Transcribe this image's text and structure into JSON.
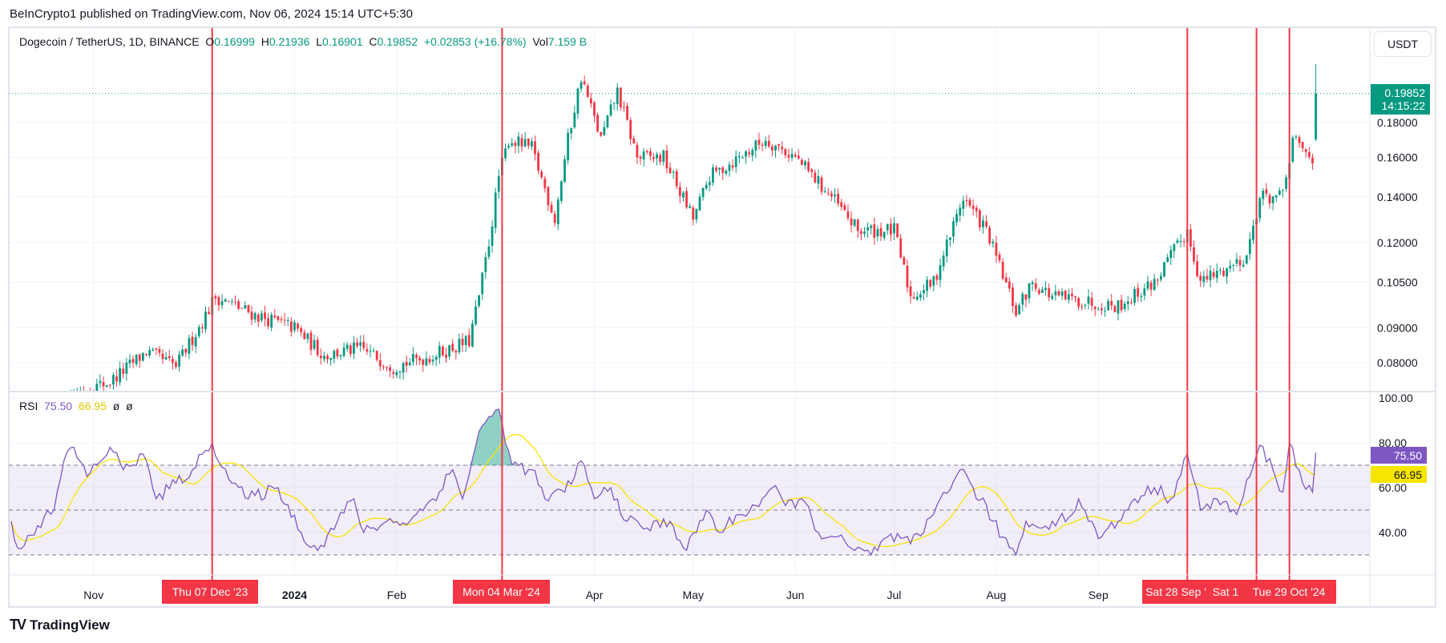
{
  "header": {
    "published": "BeInCrypto1 published on TradingView.com, Nov 06, 2024 15:14 UTC+5:30"
  },
  "legend": {
    "symbol": "Dogecoin / TetherUS, 1D, BINANCE",
    "o_label": "O",
    "o": "0.16999",
    "h_label": "H",
    "h": "0.21936",
    "l_label": "L",
    "l": "0.16901",
    "c_label": "C",
    "c": "0.19852",
    "change": "+0.02853 (+16.78%)",
    "vol_label": "Vol",
    "vol": "7.159 B"
  },
  "rsi_legend": {
    "name": "RSI",
    "rsi": "75.50",
    "ma": "66.95",
    "x1": "ø",
    "x2": "ø"
  },
  "currency_button": "USDT",
  "last_price": {
    "price": "0.19852",
    "countdown": "14:15:22"
  },
  "rsi_tags": {
    "rsi": "75.50",
    "ma": "66.95"
  },
  "footer": {
    "brand": "TradingView",
    "logo": "TV"
  },
  "colors": {
    "up": "#089981",
    "down": "#f23645",
    "rsi": "#7e57c2",
    "rsi_ma": "#f5e500",
    "marker": "#f23645"
  },
  "time_axis": {
    "months": [
      {
        "label": "Nov",
        "day": 25
      },
      {
        "label": "2024",
        "day": 86
      },
      {
        "label": "Feb",
        "day": 117
      },
      {
        "label": "Apr",
        "day": 177
      },
      {
        "label": "May",
        "day": 207
      },
      {
        "label": "Jun",
        "day": 238
      },
      {
        "label": "Jul",
        "day": 268
      },
      {
        "label": "Aug",
        "day": 299
      },
      {
        "label": "Sep",
        "day": 330
      }
    ],
    "markers": [
      {
        "label": "Thu 07 Dec '23",
        "day": 61
      },
      {
        "label": "Mon 04 Mar '24",
        "day": 149
      },
      {
        "label": "Sat 28 Sep '",
        "day": 357
      },
      {
        "label": "Sat 1",
        "day": 378
      },
      {
        "label": "Tue 29 Oct '24",
        "day": 388
      }
    ]
  },
  "chart_data": [
    {
      "type": "candlestick",
      "title": "Dogecoin / TetherUS, 1D, BINANCE",
      "scale": "log",
      "y_ticks": [
        "0.18000",
        "0.16000",
        "0.14000",
        "0.12000",
        "0.10500",
        "0.09000",
        "0.08000"
      ],
      "close_keypoints_day_price": [
        [
          0,
          0.062
        ],
        [
          19,
          0.072
        ],
        [
          30,
          0.075
        ],
        [
          41,
          0.083
        ],
        [
          50,
          0.079
        ],
        [
          58,
          0.092
        ],
        [
          62,
          0.1
        ],
        [
          74,
          0.094
        ],
        [
          86,
          0.09
        ],
        [
          95,
          0.082
        ],
        [
          106,
          0.084
        ],
        [
          116,
          0.079
        ],
        [
          128,
          0.082
        ],
        [
          139,
          0.086
        ],
        [
          142,
          0.1
        ],
        [
          145,
          0.12
        ],
        [
          148,
          0.15
        ],
        [
          151,
          0.17
        ],
        [
          158,
          0.165
        ],
        [
          165,
          0.13
        ],
        [
          169,
          0.17
        ],
        [
          173,
          0.21
        ],
        [
          179,
          0.17
        ],
        [
          184,
          0.2
        ],
        [
          190,
          0.16
        ],
        [
          198,
          0.16
        ],
        [
          207,
          0.13
        ],
        [
          212,
          0.15
        ],
        [
          221,
          0.16
        ],
        [
          229,
          0.17
        ],
        [
          238,
          0.16
        ],
        [
          249,
          0.14
        ],
        [
          257,
          0.125
        ],
        [
          268,
          0.125
        ],
        [
          273,
          0.1
        ],
        [
          280,
          0.105
        ],
        [
          289,
          0.14
        ],
        [
          296,
          0.125
        ],
        [
          305,
          0.095
        ],
        [
          310,
          0.105
        ],
        [
          316,
          0.1
        ],
        [
          329,
          0.098
        ],
        [
          336,
          0.097
        ],
        [
          347,
          0.105
        ],
        [
          357,
          0.125
        ],
        [
          361,
          0.105
        ],
        [
          369,
          0.11
        ],
        [
          375,
          0.115
        ],
        [
          379,
          0.14
        ],
        [
          386,
          0.14
        ],
        [
          389,
          0.17
        ],
        [
          395,
          0.158
        ],
        [
          396,
          0.19852
        ]
      ],
      "last_candle": {
        "open": 0.16999,
        "high": 0.21936,
        "low": 0.16901,
        "close": 0.19852
      }
    },
    {
      "type": "line",
      "title": "RSI",
      "ylim": [
        20,
        100
      ],
      "y_ticks": [
        "100.00",
        "80.00",
        "60.00",
        "40.00"
      ],
      "bands": [
        70,
        50,
        30
      ],
      "ma_length": 14,
      "rsi_keypoints_day_value": [
        [
          0,
          45
        ],
        [
          2,
          33
        ],
        [
          8,
          43
        ],
        [
          13,
          50
        ],
        [
          16,
          72
        ],
        [
          19,
          78
        ],
        [
          23,
          65
        ],
        [
          30,
          78
        ],
        [
          34,
          68
        ],
        [
          40,
          75
        ],
        [
          44,
          55
        ],
        [
          50,
          62
        ],
        [
          55,
          68
        ],
        [
          61,
          80
        ],
        [
          67,
          62
        ],
        [
          72,
          55
        ],
        [
          81,
          60
        ],
        [
          88,
          40
        ],
        [
          93,
          32
        ],
        [
          99,
          45
        ],
        [
          104,
          55
        ],
        [
          107,
          40
        ],
        [
          114,
          45
        ],
        [
          121,
          45
        ],
        [
          128,
          55
        ],
        [
          134,
          68
        ],
        [
          137,
          55
        ],
        [
          142,
          85
        ],
        [
          148,
          95
        ],
        [
          152,
          70
        ],
        [
          158,
          68
        ],
        [
          162,
          55
        ],
        [
          168,
          58
        ],
        [
          173,
          72
        ],
        [
          177,
          55
        ],
        [
          182,
          60
        ],
        [
          187,
          45
        ],
        [
          193,
          42
        ],
        [
          200,
          45
        ],
        [
          205,
          32
        ],
        [
          211,
          50
        ],
        [
          215,
          40
        ],
        [
          221,
          48
        ],
        [
          226,
          52
        ],
        [
          231,
          60
        ],
        [
          235,
          52
        ],
        [
          240,
          55
        ],
        [
          245,
          40
        ],
        [
          250,
          38
        ],
        [
          256,
          32
        ],
        [
          261,
          30
        ],
        [
          266,
          38
        ],
        [
          273,
          35
        ],
        [
          277,
          40
        ],
        [
          282,
          55
        ],
        [
          288,
          68
        ],
        [
          292,
          60
        ],
        [
          298,
          45
        ],
        [
          301,
          38
        ],
        [
          305,
          30
        ],
        [
          308,
          45
        ],
        [
          312,
          42
        ],
        [
          316,
          45
        ],
        [
          322,
          48
        ],
        [
          324,
          55
        ],
        [
          327,
          45
        ],
        [
          331,
          38
        ],
        [
          336,
          45
        ],
        [
          341,
          55
        ],
        [
          347,
          60
        ],
        [
          352,
          55
        ],
        [
          357,
          75
        ],
        [
          361,
          50
        ],
        [
          366,
          55
        ],
        [
          372,
          48
        ],
        [
          376,
          65
        ],
        [
          379,
          79
        ],
        [
          383,
          68
        ],
        [
          386,
          58
        ],
        [
          388,
          80
        ],
        [
          392,
          62
        ],
        [
          395,
          58
        ],
        [
          396,
          75.5
        ]
      ]
    }
  ]
}
